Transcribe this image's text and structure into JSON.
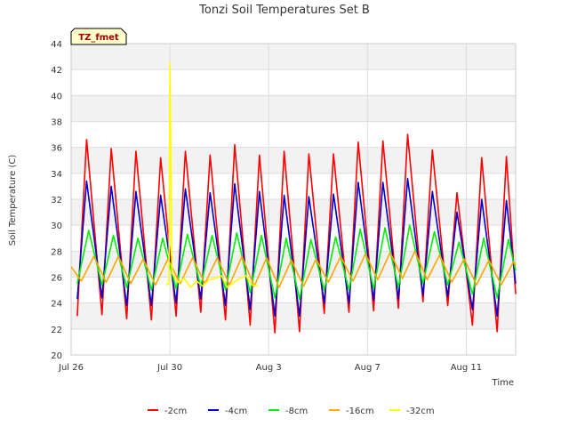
{
  "chart_data": {
    "type": "line",
    "title": "Tonzi Soil Temperatures Set B",
    "xlabel": "Time",
    "ylabel": "Soil Temperature (C)",
    "ylim": [
      20,
      44
    ],
    "yticks": [
      20,
      22,
      24,
      26,
      28,
      30,
      32,
      34,
      36,
      38,
      40,
      42,
      44
    ],
    "xlim": [
      "2024-07-26",
      "2024-08-13"
    ],
    "xticks": [
      {
        "label": "Jul 26",
        "date": "2024-07-26"
      },
      {
        "label": "Jul 30",
        "date": "2024-07-30"
      },
      {
        "label": "Aug 3",
        "date": "2024-08-03"
      },
      {
        "label": "Aug 7",
        "date": "2024-08-07"
      },
      {
        "label": "Aug 11",
        "date": "2024-08-11"
      }
    ],
    "grid": true,
    "legend_position": "bottom",
    "badge": "TZ_fmet",
    "series": [
      {
        "name": "-2cm",
        "color": "#ff0000",
        "x": [
          "2024-07-26T06:00",
          "2024-07-26T15:00",
          "2024-07-27T06:00",
          "2024-07-27T15:00",
          "2024-07-28T06:00",
          "2024-07-28T15:00",
          "2024-07-29T06:00",
          "2024-07-29T15:00",
          "2024-07-30T06:00",
          "2024-07-30T15:00",
          "2024-07-31T06:00",
          "2024-07-31T15:00",
          "2024-08-01T06:00",
          "2024-08-01T15:00",
          "2024-08-02T06:00",
          "2024-08-02T15:00",
          "2024-08-03T06:00",
          "2024-08-03T15:00",
          "2024-08-04T06:00",
          "2024-08-04T15:00",
          "2024-08-05T06:00",
          "2024-08-05T15:00",
          "2024-08-06T06:00",
          "2024-08-06T15:00",
          "2024-08-07T06:00",
          "2024-08-07T15:00",
          "2024-08-08T06:00",
          "2024-08-08T15:00",
          "2024-08-09T06:00",
          "2024-08-09T15:00",
          "2024-08-10T06:00",
          "2024-08-10T15:00",
          "2024-08-11T06:00",
          "2024-08-11T15:00",
          "2024-08-12T06:00",
          "2024-08-12T15:00",
          "2024-08-13T00:00"
        ],
        "y": [
          23.0,
          36.6,
          23.1,
          35.9,
          22.8,
          35.7,
          22.7,
          35.2,
          23.0,
          35.7,
          23.3,
          35.4,
          22.7,
          36.2,
          22.3,
          35.4,
          21.7,
          35.7,
          21.8,
          35.5,
          23.2,
          35.5,
          23.3,
          36.4,
          23.4,
          36.5,
          23.6,
          37.0,
          24.1,
          35.8,
          23.8,
          32.5,
          22.3,
          35.2,
          21.8,
          35.3,
          24.7
        ]
      },
      {
        "name": "-4cm",
        "color": "#0000cc",
        "x": [
          "2024-07-26T06:00",
          "2024-07-26T15:00",
          "2024-07-27T06:00",
          "2024-07-27T15:00",
          "2024-07-28T06:00",
          "2024-07-28T15:00",
          "2024-07-29T06:00",
          "2024-07-29T15:00",
          "2024-07-30T06:00",
          "2024-07-30T15:00",
          "2024-07-31T06:00",
          "2024-07-31T15:00",
          "2024-08-01T06:00",
          "2024-08-01T15:00",
          "2024-08-02T06:00",
          "2024-08-02T15:00",
          "2024-08-03T06:00",
          "2024-08-03T15:00",
          "2024-08-04T06:00",
          "2024-08-04T15:00",
          "2024-08-05T06:00",
          "2024-08-05T15:00",
          "2024-08-06T06:00",
          "2024-08-06T15:00",
          "2024-08-07T06:00",
          "2024-08-07T15:00",
          "2024-08-08T06:00",
          "2024-08-08T15:00",
          "2024-08-09T06:00",
          "2024-08-09T15:00",
          "2024-08-10T06:00",
          "2024-08-10T15:00",
          "2024-08-11T06:00",
          "2024-08-11T15:00",
          "2024-08-12T06:00",
          "2024-08-12T15:00",
          "2024-08-13T00:00"
        ],
        "y": [
          24.3,
          33.4,
          24.4,
          33.0,
          23.8,
          32.6,
          23.8,
          32.3,
          24.0,
          32.8,
          24.3,
          32.5,
          23.8,
          33.2,
          23.5,
          32.6,
          23.0,
          32.3,
          23.0,
          32.2,
          24.0,
          32.4,
          24.0,
          33.3,
          24.2,
          33.3,
          24.3,
          33.6,
          24.6,
          32.6,
          24.5,
          31.0,
          23.5,
          32.0,
          23.0,
          31.9,
          25.5
        ]
      },
      {
        "name": "-8cm",
        "color": "#00ee00",
        "x": [
          "2024-07-26T06:00",
          "2024-07-26T17:00",
          "2024-07-27T06:00",
          "2024-07-27T17:00",
          "2024-07-28T06:00",
          "2024-07-28T17:00",
          "2024-07-29T06:00",
          "2024-07-29T17:00",
          "2024-07-30T06:00",
          "2024-07-30T17:00",
          "2024-07-31T06:00",
          "2024-07-31T17:00",
          "2024-08-01T06:00",
          "2024-08-01T17:00",
          "2024-08-02T06:00",
          "2024-08-02T17:00",
          "2024-08-03T06:00",
          "2024-08-03T17:00",
          "2024-08-04T06:00",
          "2024-08-04T17:00",
          "2024-08-05T06:00",
          "2024-08-05T17:00",
          "2024-08-06T06:00",
          "2024-08-06T17:00",
          "2024-08-07T06:00",
          "2024-08-07T17:00",
          "2024-08-08T06:00",
          "2024-08-08T17:00",
          "2024-08-09T06:00",
          "2024-08-09T17:00",
          "2024-08-10T06:00",
          "2024-08-10T17:00",
          "2024-08-11T06:00",
          "2024-08-11T17:00",
          "2024-08-12T06:00",
          "2024-08-12T17:00",
          "2024-08-13T00:00"
        ],
        "y": [
          25.5,
          29.6,
          25.4,
          29.2,
          25.2,
          29.0,
          25.0,
          29.0,
          25.1,
          29.3,
          25.3,
          29.2,
          25.0,
          29.4,
          24.8,
          29.2,
          24.4,
          29.0,
          24.3,
          28.9,
          25.0,
          29.1,
          25.0,
          29.7,
          25.1,
          29.8,
          25.2,
          30.0,
          25.5,
          29.5,
          25.4,
          28.7,
          24.7,
          29.0,
          24.4,
          28.9,
          26.5
        ]
      },
      {
        "name": "-16cm",
        "color": "#ffa500",
        "x": [
          "2024-07-26T00:00",
          "2024-07-26T10:00",
          "2024-07-26T22:00",
          "2024-07-27T10:00",
          "2024-07-27T22:00",
          "2024-07-28T10:00",
          "2024-07-28T22:00",
          "2024-07-29T10:00",
          "2024-07-29T22:00",
          "2024-07-30T10:00",
          "2024-07-30T22:00",
          "2024-07-31T10:00",
          "2024-07-31T22:00",
          "2024-08-01T10:00",
          "2024-08-01T22:00",
          "2024-08-02T10:00",
          "2024-08-02T22:00",
          "2024-08-03T10:00",
          "2024-08-03T22:00",
          "2024-08-04T10:00",
          "2024-08-04T22:00",
          "2024-08-05T10:00",
          "2024-08-05T22:00",
          "2024-08-06T10:00",
          "2024-08-06T22:00",
          "2024-08-07T10:00",
          "2024-08-07T22:00",
          "2024-08-08T10:00",
          "2024-08-08T22:00",
          "2024-08-09T10:00",
          "2024-08-09T22:00",
          "2024-08-10T10:00",
          "2024-08-10T22:00",
          "2024-08-11T10:00",
          "2024-08-11T22:00",
          "2024-08-12T10:00",
          "2024-08-12T22:00",
          "2024-08-13T00:00"
        ],
        "y": [
          26.8,
          25.7,
          27.6,
          25.6,
          27.6,
          25.5,
          27.4,
          25.4,
          27.4,
          25.5,
          27.5,
          25.5,
          27.5,
          25.4,
          27.6,
          25.3,
          27.5,
          25.2,
          27.3,
          25.3,
          27.4,
          25.6,
          27.6,
          25.7,
          27.8,
          25.8,
          27.9,
          25.9,
          28.0,
          25.8,
          27.7,
          25.6,
          27.4,
          25.4,
          27.3,
          25.4,
          27.2,
          26.9
        ]
      },
      {
        "name": "-32cm",
        "color": "#ffff00",
        "x": [
          "2024-07-29T20:00",
          "2024-07-29T23:00",
          "2024-07-30T00:00",
          "2024-07-30T02:00",
          "2024-07-30T08:00",
          "2024-07-30T14:00",
          "2024-07-30T20:00",
          "2024-07-31T02:00",
          "2024-07-31T08:00",
          "2024-07-31T14:00",
          "2024-07-31T20:00",
          "2024-08-01T02:00",
          "2024-08-01T08:00",
          "2024-08-01T14:00",
          "2024-08-01T20:00",
          "2024-08-02T02:00",
          "2024-08-02T08:00",
          "2024-08-02T14:00"
        ],
        "y": [
          25.4,
          25.5,
          42.5,
          26.3,
          25.6,
          25.9,
          25.2,
          25.7,
          25.3,
          25.8,
          25.9,
          26.1,
          25.2,
          25.6,
          25.9,
          26.1,
          25.4,
          25.3
        ]
      }
    ]
  }
}
